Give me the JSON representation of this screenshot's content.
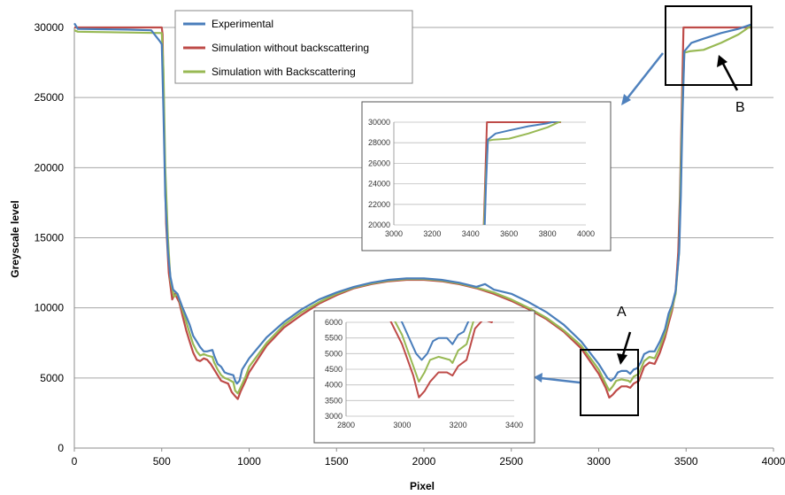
{
  "chart_data": {
    "type": "line",
    "xlabel": "Pixel",
    "ylabel": "Greyscale level",
    "xlim": [
      0,
      4000
    ],
    "ylim": [
      0,
      30000
    ],
    "x_ticks": [
      "0",
      "500",
      "1000",
      "1500",
      "2000",
      "2500",
      "3000",
      "3500",
      "4000"
    ],
    "y_ticks": [
      "0",
      "5000",
      "10000",
      "15000",
      "20000",
      "25000",
      "30000"
    ],
    "grid": "horizontal",
    "legend_position": "top-left",
    "series": [
      {
        "name": "Experimental",
        "color": "#4a7ebb",
        "points": [
          [
            0,
            30300
          ],
          [
            20,
            29900
          ],
          [
            300,
            29850
          ],
          [
            440,
            29800
          ],
          [
            490,
            29000
          ],
          [
            500,
            28800
          ],
          [
            510,
            24000
          ],
          [
            520,
            18000
          ],
          [
            535,
            14000
          ],
          [
            550,
            12200
          ],
          [
            565,
            11300
          ],
          [
            590,
            11000
          ],
          [
            620,
            10000
          ],
          [
            640,
            9400
          ],
          [
            660,
            8800
          ],
          [
            680,
            8000
          ],
          [
            700,
            7600
          ],
          [
            720,
            7200
          ],
          [
            740,
            6900
          ],
          [
            760,
            6900
          ],
          [
            790,
            7000
          ],
          [
            800,
            6600
          ],
          [
            820,
            6000
          ],
          [
            840,
            5800
          ],
          [
            860,
            5400
          ],
          [
            880,
            5300
          ],
          [
            910,
            5200
          ],
          [
            920,
            4800
          ],
          [
            930,
            4600
          ],
          [
            945,
            4800
          ],
          [
            960,
            5600
          ],
          [
            1000,
            6400
          ],
          [
            1100,
            7900
          ],
          [
            1200,
            9000
          ],
          [
            1300,
            9900
          ],
          [
            1400,
            10600
          ],
          [
            1500,
            11100
          ],
          [
            1600,
            11500
          ],
          [
            1700,
            11800
          ],
          [
            1800,
            12000
          ],
          [
            1900,
            12100
          ],
          [
            2000,
            12100
          ],
          [
            2100,
            12000
          ],
          [
            2200,
            11800
          ],
          [
            2300,
            11500
          ],
          [
            2350,
            11700
          ],
          [
            2400,
            11300
          ],
          [
            2500,
            11000
          ],
          [
            2600,
            10400
          ],
          [
            2700,
            9700
          ],
          [
            2800,
            8800
          ],
          [
            2900,
            7600
          ],
          [
            3000,
            6000
          ],
          [
            3050,
            5000
          ],
          [
            3070,
            4800
          ],
          [
            3090,
            5000
          ],
          [
            3110,
            5400
          ],
          [
            3130,
            5500
          ],
          [
            3160,
            5500
          ],
          [
            3180,
            5300
          ],
          [
            3200,
            5600
          ],
          [
            3220,
            5700
          ],
          [
            3240,
            6100
          ],
          [
            3260,
            6700
          ],
          [
            3290,
            6900
          ],
          [
            3320,
            6900
          ],
          [
            3350,
            7600
          ],
          [
            3380,
            8500
          ],
          [
            3400,
            9600
          ],
          [
            3420,
            10200
          ],
          [
            3440,
            11200
          ],
          [
            3460,
            14000
          ],
          [
            3470,
            18000
          ],
          [
            3480,
            24000
          ],
          [
            3490,
            28300
          ],
          [
            3530,
            28900
          ],
          [
            3600,
            29200
          ],
          [
            3700,
            29600
          ],
          [
            3800,
            29900
          ],
          [
            3870,
            30200
          ]
        ]
      },
      {
        "name": "Simulation without backscattering",
        "color": "#be4b48",
        "points": [
          [
            0,
            30000
          ],
          [
            20,
            30000
          ],
          [
            500,
            30000
          ],
          [
            505,
            29500
          ],
          [
            515,
            22000
          ],
          [
            525,
            16000
          ],
          [
            540,
            12500
          ],
          [
            560,
            10600
          ],
          [
            575,
            11000
          ],
          [
            600,
            10400
          ],
          [
            620,
            9400
          ],
          [
            640,
            8400
          ],
          [
            660,
            7600
          ],
          [
            680,
            6800
          ],
          [
            700,
            6300
          ],
          [
            720,
            6200
          ],
          [
            740,
            6400
          ],
          [
            760,
            6300
          ],
          [
            780,
            6000
          ],
          [
            800,
            5600
          ],
          [
            820,
            5200
          ],
          [
            840,
            4800
          ],
          [
            860,
            4700
          ],
          [
            880,
            4600
          ],
          [
            900,
            4000
          ],
          [
            920,
            3700
          ],
          [
            935,
            3500
          ],
          [
            950,
            4000
          ],
          [
            980,
            4800
          ],
          [
            1000,
            5400
          ],
          [
            1100,
            7300
          ],
          [
            1200,
            8600
          ],
          [
            1300,
            9500
          ],
          [
            1400,
            10300
          ],
          [
            1500,
            10900
          ],
          [
            1600,
            11400
          ],
          [
            1700,
            11700
          ],
          [
            1800,
            11900
          ],
          [
            1900,
            12000
          ],
          [
            2000,
            12000
          ],
          [
            2100,
            11900
          ],
          [
            2200,
            11700
          ],
          [
            2300,
            11400
          ],
          [
            2400,
            11000
          ],
          [
            2500,
            10500
          ],
          [
            2600,
            9900
          ],
          [
            2700,
            9200
          ],
          [
            2800,
            8300
          ],
          [
            2900,
            7100
          ],
          [
            3000,
            5300
          ],
          [
            3040,
            4300
          ],
          [
            3060,
            3600
          ],
          [
            3080,
            3800
          ],
          [
            3100,
            4100
          ],
          [
            3130,
            4400
          ],
          [
            3160,
            4400
          ],
          [
            3180,
            4300
          ],
          [
            3200,
            4600
          ],
          [
            3230,
            4800
          ],
          [
            3260,
            5800
          ],
          [
            3290,
            6100
          ],
          [
            3320,
            6000
          ],
          [
            3350,
            6800
          ],
          [
            3380,
            7900
          ],
          [
            3400,
            8900
          ],
          [
            3420,
            9800
          ],
          [
            3440,
            11200
          ],
          [
            3455,
            14000
          ],
          [
            3465,
            18000
          ],
          [
            3475,
            24000
          ],
          [
            3485,
            30000
          ],
          [
            3870,
            30000
          ]
        ]
      },
      {
        "name": "Simulation with Backscattering",
        "color": "#98b954",
        "points": [
          [
            0,
            29800
          ],
          [
            20,
            29700
          ],
          [
            500,
            29600
          ],
          [
            510,
            27000
          ],
          [
            520,
            20000
          ],
          [
            535,
            15000
          ],
          [
            550,
            12000
          ],
          [
            570,
            10800
          ],
          [
            590,
            11000
          ],
          [
            620,
            9800
          ],
          [
            640,
            9000
          ],
          [
            660,
            8200
          ],
          [
            680,
            7400
          ],
          [
            700,
            6900
          ],
          [
            720,
            6600
          ],
          [
            740,
            6700
          ],
          [
            760,
            6600
          ],
          [
            790,
            6500
          ],
          [
            800,
            6100
          ],
          [
            820,
            5600
          ],
          [
            840,
            5200
          ],
          [
            860,
            5000
          ],
          [
            880,
            4900
          ],
          [
            910,
            4700
          ],
          [
            920,
            4100
          ],
          [
            935,
            3900
          ],
          [
            950,
            4300
          ],
          [
            980,
            5100
          ],
          [
            1000,
            5800
          ],
          [
            1100,
            7500
          ],
          [
            1200,
            8800
          ],
          [
            1300,
            9700
          ],
          [
            1400,
            10400
          ],
          [
            1500,
            11000
          ],
          [
            1600,
            11450
          ],
          [
            1700,
            11750
          ],
          [
            1800,
            11950
          ],
          [
            1900,
            12050
          ],
          [
            2000,
            12050
          ],
          [
            2100,
            11950
          ],
          [
            2200,
            11750
          ],
          [
            2300,
            11450
          ],
          [
            2400,
            11100
          ],
          [
            2500,
            10600
          ],
          [
            2600,
            10000
          ],
          [
            2700,
            9300
          ],
          [
            2800,
            8400
          ],
          [
            2900,
            7300
          ],
          [
            3000,
            5600
          ],
          [
            3040,
            4600
          ],
          [
            3060,
            4100
          ],
          [
            3080,
            4400
          ],
          [
            3100,
            4800
          ],
          [
            3130,
            4900
          ],
          [
            3170,
            4800
          ],
          [
            3180,
            4700
          ],
          [
            3200,
            5100
          ],
          [
            3230,
            5300
          ],
          [
            3260,
            6200
          ],
          [
            3290,
            6500
          ],
          [
            3320,
            6400
          ],
          [
            3350,
            7200
          ],
          [
            3380,
            8200
          ],
          [
            3400,
            9200
          ],
          [
            3420,
            10000
          ],
          [
            3440,
            11000
          ],
          [
            3460,
            14000
          ],
          [
            3470,
            20000
          ],
          [
            3480,
            25000
          ],
          [
            3490,
            28200
          ],
          [
            3520,
            28300
          ],
          [
            3600,
            28400
          ],
          [
            3700,
            28900
          ],
          [
            3800,
            29500
          ],
          [
            3870,
            30100
          ]
        ]
      }
    ],
    "insets": [
      {
        "id": "B-zoom",
        "xlim": [
          3000,
          4000
        ],
        "ylim": [
          20000,
          30000
        ],
        "x_ticks": [
          "3000",
          "3200",
          "3400",
          "3600",
          "3800",
          "4000"
        ],
        "y_ticks": [
          "20000",
          "22000",
          "24000",
          "26000",
          "28000",
          "30000"
        ]
      },
      {
        "id": "A-zoom",
        "xlim": [
          2800,
          3400
        ],
        "ylim": [
          3000,
          6000
        ],
        "x_ticks": [
          "2800",
          "3000",
          "3200",
          "3400"
        ],
        "y_ticks": [
          "3000",
          "3500",
          "4000",
          "4500",
          "5000",
          "5500",
          "6000"
        ]
      }
    ],
    "annotations": [
      "A",
      "B"
    ]
  }
}
